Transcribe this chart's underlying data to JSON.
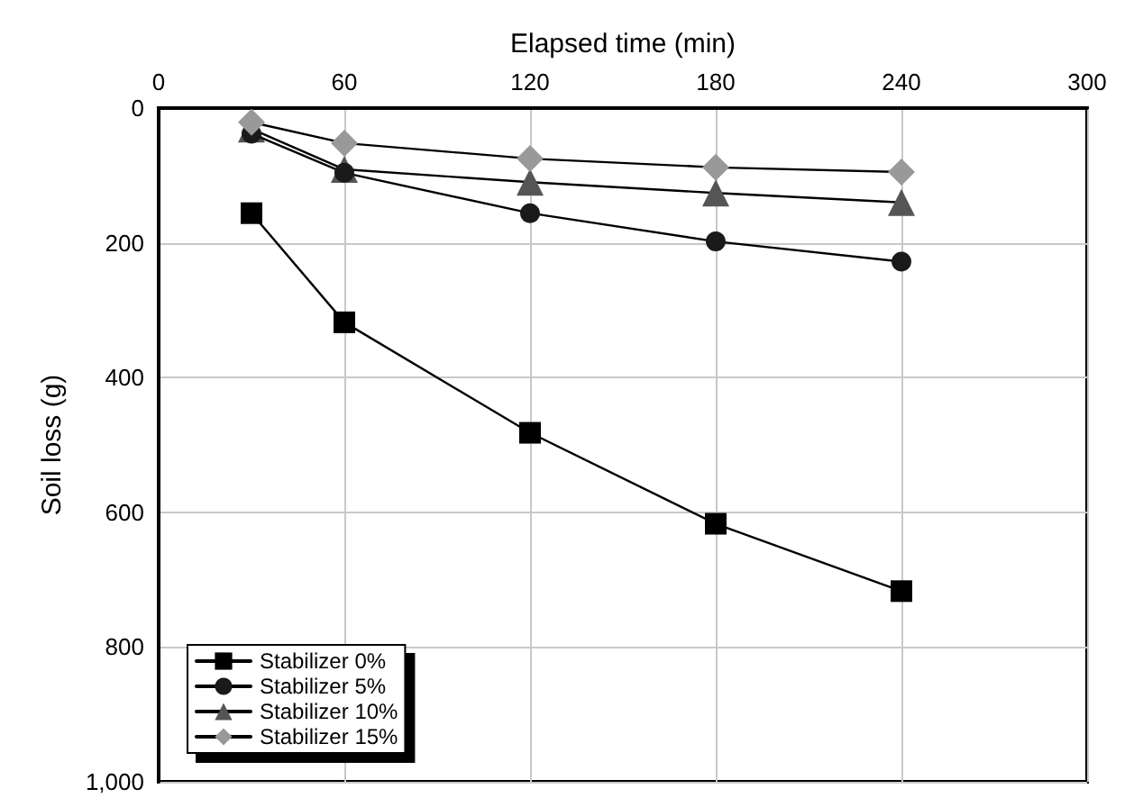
{
  "chart_data": {
    "type": "line",
    "xlabel": "Elapsed time (min)",
    "ylabel": "Soil loss (g)",
    "x": [
      30,
      60,
      120,
      180,
      240
    ],
    "series": [
      {
        "name": "Stabilizer 0%",
        "color": "#000000",
        "marker": "square",
        "values": [
          156,
          318,
          482,
          617,
          717
        ]
      },
      {
        "name": "Stabilizer 5%",
        "color": "#1a1a1a",
        "marker": "circle",
        "values": [
          38,
          96,
          156,
          198,
          228
        ]
      },
      {
        "name": "Stabilizer 10%",
        "color": "#555555",
        "marker": "triangle",
        "values": [
          31,
          91,
          110,
          126,
          140
        ]
      },
      {
        "name": "Stabilizer 15%",
        "color": "#999999",
        "marker": "diamond",
        "values": [
          21,
          52,
          75,
          88,
          95
        ]
      }
    ],
    "xlim": [
      0,
      300
    ],
    "xticks": [
      0,
      60,
      120,
      180,
      240,
      300
    ],
    "ylim": [
      1000,
      0
    ],
    "yticks": [
      0,
      200,
      400,
      600,
      800,
      {
        "value": 1000,
        "label": "1,000"
      }
    ],
    "grid": true,
    "legend": "bottom left",
    "line_style": "solid"
  }
}
